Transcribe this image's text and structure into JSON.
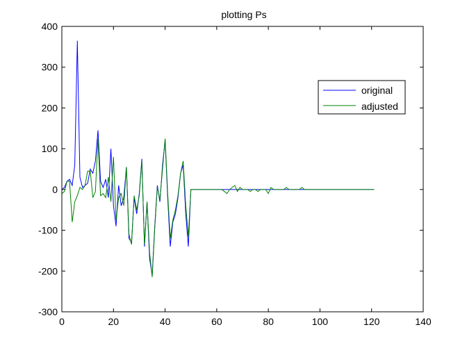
{
  "chart_data": {
    "type": "line",
    "title": "plotting Ps",
    "xlabel": "",
    "ylabel": "",
    "xlim": [
      0,
      140
    ],
    "ylim": [
      -300,
      400
    ],
    "xticks": [
      0,
      20,
      40,
      60,
      80,
      100,
      120,
      140
    ],
    "yticks": [
      -300,
      -200,
      -100,
      0,
      100,
      200,
      300,
      400
    ],
    "grid": false,
    "legend_position": "top-right",
    "series": [
      {
        "name": "original",
        "color": "#0000ff",
        "x": [
          0,
          1,
          2,
          3,
          4,
          5,
          6,
          7,
          8,
          9,
          10,
          11,
          12,
          13,
          14,
          15,
          16,
          17,
          18,
          19,
          20,
          21,
          22,
          23,
          24,
          25,
          26,
          27,
          28,
          29,
          30,
          31,
          32,
          33,
          34,
          35,
          36,
          37,
          38,
          39,
          40,
          41,
          42,
          43,
          44,
          45,
          46,
          47,
          48,
          49,
          50,
          51,
          52,
          53,
          54,
          55,
          56,
          57,
          58,
          59,
          60,
          61,
          62,
          63,
          64,
          65,
          66,
          67,
          68,
          69,
          70,
          71,
          72,
          73,
          74,
          75,
          76,
          77,
          78,
          79,
          80,
          81,
          82,
          83,
          84,
          85,
          86,
          87,
          88,
          89,
          90,
          91,
          92,
          93,
          94,
          95,
          96,
          97,
          98,
          99,
          100,
          101,
          102,
          103,
          104,
          105,
          106,
          107,
          108,
          109,
          110,
          111,
          112,
          113,
          114,
          115,
          116,
          117,
          118,
          119,
          120,
          121
        ],
        "y": [
          0,
          5,
          20,
          25,
          10,
          60,
          365,
          30,
          5,
          10,
          15,
          50,
          40,
          70,
          145,
          20,
          5,
          25,
          -20,
          100,
          -40,
          -90,
          10,
          -40,
          -20,
          55,
          -120,
          -130,
          -20,
          -60,
          -10,
          75,
          -140,
          -30,
          -170,
          -210,
          -90,
          10,
          -30,
          60,
          120,
          -20,
          -140,
          -80,
          -60,
          -20,
          40,
          60,
          -60,
          -140,
          0,
          0,
          0,
          0,
          0,
          0,
          0,
          0,
          0,
          0,
          0,
          0,
          0,
          0,
          0,
          0,
          0,
          0,
          0,
          0,
          0,
          0,
          0,
          0,
          0,
          0,
          0,
          0,
          0,
          0,
          0,
          0,
          0,
          0,
          0,
          0,
          0,
          0,
          0,
          0,
          0,
          0,
          0,
          0,
          0,
          0,
          0,
          0,
          0,
          0,
          0,
          0,
          0,
          0,
          0,
          0,
          0,
          0,
          0,
          0,
          0,
          0,
          0,
          0,
          0,
          0,
          0,
          0,
          0,
          0,
          0,
          0
        ]
      },
      {
        "name": "adjusted",
        "color": "#008000",
        "x": [
          0,
          1,
          2,
          3,
          4,
          5,
          6,
          7,
          8,
          9,
          10,
          11,
          12,
          13,
          14,
          15,
          16,
          17,
          18,
          19,
          20,
          21,
          22,
          23,
          24,
          25,
          26,
          27,
          28,
          29,
          30,
          31,
          32,
          33,
          34,
          35,
          36,
          37,
          38,
          39,
          40,
          41,
          42,
          43,
          44,
          45,
          46,
          47,
          48,
          49,
          50,
          51,
          52,
          53,
          54,
          55,
          56,
          57,
          58,
          59,
          60,
          61,
          62,
          63,
          64,
          65,
          66,
          67,
          68,
          69,
          70,
          71,
          72,
          73,
          74,
          75,
          76,
          77,
          78,
          79,
          80,
          81,
          82,
          83,
          84,
          85,
          86,
          87,
          88,
          89,
          90,
          91,
          92,
          93,
          94,
          95,
          96,
          97,
          98,
          99,
          100,
          101,
          102,
          103,
          104,
          105,
          106,
          107,
          108,
          109,
          110,
          111,
          112,
          113,
          114,
          115,
          116,
          117,
          118,
          119,
          120,
          121
        ],
        "y": [
          -10,
          -5,
          20,
          20,
          -80,
          -30,
          -15,
          5,
          0,
          10,
          45,
          45,
          -20,
          -5,
          125,
          -15,
          -10,
          -20,
          30,
          -30,
          80,
          -75,
          -20,
          -10,
          -40,
          55,
          -110,
          -135,
          -15,
          -50,
          -15,
          70,
          -135,
          -30,
          -155,
          -215,
          -95,
          5,
          -25,
          50,
          125,
          -10,
          -120,
          -75,
          -50,
          -15,
          40,
          70,
          -40,
          -115,
          0,
          0,
          0,
          0,
          0,
          0,
          0,
          0,
          0,
          0,
          0,
          0,
          0,
          -5,
          -10,
          0,
          5,
          10,
          -5,
          5,
          0,
          0,
          0,
          -5,
          0,
          0,
          -5,
          0,
          0,
          0,
          -10,
          5,
          0,
          0,
          0,
          0,
          0,
          5,
          0,
          0,
          0,
          0,
          0,
          5,
          0,
          0,
          0,
          0,
          0,
          0,
          0,
          0,
          0,
          0,
          0,
          0,
          0,
          0,
          0,
          0,
          0,
          0,
          0,
          0,
          0,
          0,
          0,
          0,
          0,
          0,
          0,
          0
        ]
      }
    ]
  }
}
